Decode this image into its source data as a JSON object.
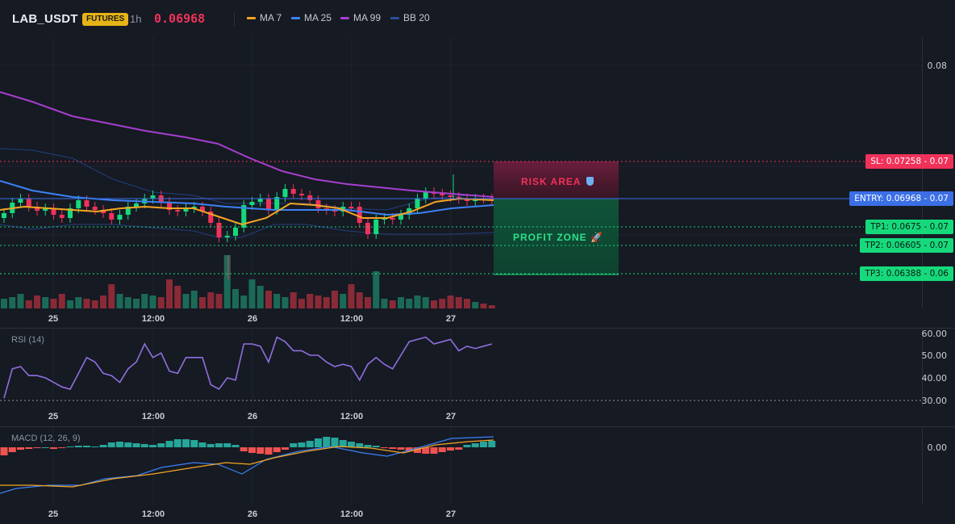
{
  "header": {
    "symbol": "LAB_USDT",
    "badge": "FUTURES",
    "timeframe": "1h",
    "price": "0.06968",
    "price_color": "#f0325a",
    "legend": [
      {
        "label": "MA 7",
        "color": "#f5a623"
      },
      {
        "label": "MA 25",
        "color": "#3b82f6"
      },
      {
        "label": "MA 99",
        "color": "#a63fcf"
      },
      {
        "label": "BB 20",
        "color": "#2a4f9e"
      }
    ]
  },
  "price_axis": {
    "top_label": "0.08"
  },
  "levels": {
    "sl": {
      "label": "SL: 0.07258",
      "suffix": "- 0.07",
      "color": "#f0325a"
    },
    "entry": {
      "label": "ENTRY: 0.06968",
      "suffix": "- 0.07",
      "color": "#3b6fe6"
    },
    "tp1": {
      "label": "TP1: 0.0675",
      "suffix": "- 0.07",
      "color": "#16d97c"
    },
    "tp2": {
      "label": "TP2: 0.06605",
      "suffix": "- 0.07",
      "color": "#16d97c"
    },
    "tp3": {
      "label": "TP3: 0.06388",
      "suffix": "- 0.06",
      "color": "#16d97c"
    }
  },
  "zones": {
    "risk_label": "RISK AREA",
    "profit_label": "PROFIT ZONE"
  },
  "time_axis": [
    "25",
    "12:00",
    "26",
    "12:00",
    "27"
  ],
  "rsi": {
    "title": "RSI (14)",
    "labels": [
      "60.00",
      "50.00",
      "40.00",
      "30.00"
    ],
    "series": [
      31,
      44,
      45,
      41,
      41,
      40,
      38,
      36,
      35,
      42,
      49,
      47,
      42,
      41,
      38,
      44,
      47,
      55,
      49,
      51,
      43,
      42,
      49,
      49,
      49,
      37,
      35,
      40,
      39,
      55,
      55,
      54,
      47,
      58,
      56,
      52,
      52,
      50,
      50,
      47,
      45,
      46,
      45,
      39,
      46,
      49,
      46,
      44,
      50,
      56,
      57,
      58,
      55,
      56,
      57,
      52,
      54,
      53,
      54,
      55
    ]
  },
  "macd": {
    "title": "MACD (12, 26, 9)",
    "labels": [
      "0.00"
    ]
  }
}
